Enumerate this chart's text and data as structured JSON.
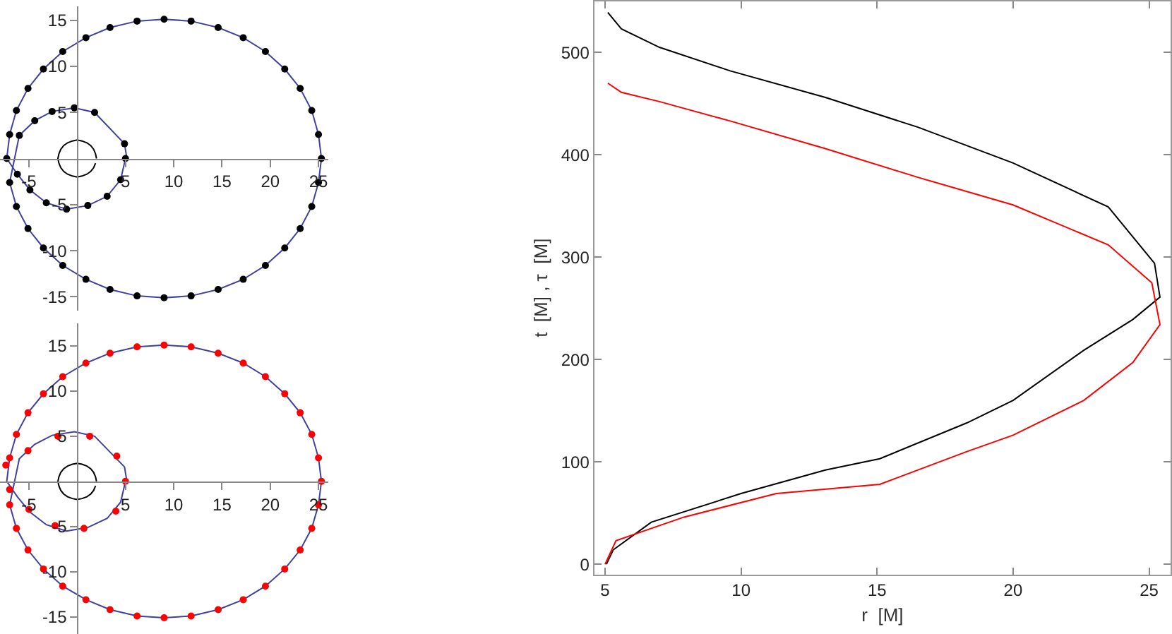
{
  "chart_data": [
    {
      "type": "line",
      "xlim": [
        -8,
        26
      ],
      "ylim": [
        -16.5,
        16.5
      ],
      "xticks": [
        -5,
        5,
        10,
        15,
        20,
        25
      ],
      "yticks": [
        -15,
        -10,
        -5,
        5,
        10,
        15
      ],
      "line_style": "solid",
      "series": [
        {
          "type": "line",
          "color": "#4040a0",
          "x": [
            5,
            4.5,
            3.1,
            1.1,
            -1.1,
            -3.2,
            -4.9,
            -6.2,
            -7.3,
            -7,
            -6.3,
            -5.1,
            -3.5,
            -1.5,
            0.9,
            3.4,
            6.2,
            9,
            11.8,
            14.6,
            17.2,
            19.5,
            21.5,
            23.1,
            24.3,
            25,
            25.3,
            25,
            24.3,
            23.1,
            21.5,
            19.5,
            17.2,
            14.6,
            11.8,
            9,
            6.2,
            3.4,
            0.9,
            -1.5,
            -3.5,
            -5.1,
            -6.3,
            -7,
            -6,
            -4.4,
            -2.6,
            -0.3,
            1.8,
            4.9,
            5.1
          ],
          "values": [
            0,
            -2.3,
            -4.1,
            -5.1,
            -5.5,
            -4.8,
            -3.4,
            -1.7,
            0,
            2.6,
            5.2,
            7.6,
            9.7,
            11.6,
            13.1,
            14.2,
            14.9,
            15.1,
            14.9,
            14.2,
            13.1,
            11.6,
            9.7,
            7.6,
            5.2,
            2.6,
            0,
            -2.6,
            -5.2,
            -7.6,
            -9.7,
            -11.6,
            -13.1,
            -14.2,
            -14.9,
            -15.1,
            -14.9,
            -14.2,
            -13.1,
            -11.6,
            -9.7,
            -7.6,
            -5.2,
            -2.6,
            2.5,
            4.1,
            5.1,
            5.5,
            5,
            1.6,
            0.3
          ]
        },
        {
          "type": "line",
          "color": "#000000",
          "x": [
            2,
            1.9,
            1.7,
            1.4,
            1,
            0.5,
            0,
            -0.5,
            -1,
            -1.4,
            -1.7,
            -1.9,
            -2,
            -1.9,
            -1.7,
            -1.4,
            -1,
            -0.5,
            0,
            0.5,
            1,
            1.4,
            1.7,
            1.9
          ],
          "values": [
            0,
            0.5,
            1,
            1.4,
            1.7,
            1.9,
            2,
            1.9,
            1.7,
            1.4,
            1,
            0.5,
            0,
            -0.5,
            -1,
            -1.4,
            -1.7,
            -1.9,
            -2,
            -1.9,
            -1.7,
            -1.4,
            -1,
            -0.5
          ]
        },
        {
          "type": "scatter",
          "marker": "circle",
          "color": "#000000",
          "x": [
            5,
            4.5,
            3.1,
            1.1,
            -1.1,
            -3.2,
            -4.9,
            -6.2,
            -7.3,
            -7,
            -6.3,
            -5.1,
            -3.5,
            -1.5,
            0.9,
            3.4,
            6.2,
            9,
            11.8,
            14.6,
            17.2,
            19.5,
            21.5,
            23.1,
            24.3,
            25,
            25.3,
            25,
            24.3,
            23.1,
            21.5,
            19.5,
            17.2,
            14.6,
            11.8,
            9,
            6.2,
            3.4,
            0.9,
            -1.5,
            -3.5,
            -5.1,
            -6.3,
            -7,
            -6,
            -4.4,
            -2.6,
            -0.3,
            1.8,
            4.9
          ],
          "values": [
            0,
            -2.3,
            -4.1,
            -5.1,
            -5.5,
            -4.8,
            -3.4,
            -1.7,
            0,
            2.6,
            5.2,
            7.6,
            9.7,
            11.6,
            13.1,
            14.2,
            14.9,
            15.1,
            14.9,
            14.2,
            13.1,
            11.6,
            9.7,
            7.6,
            5.2,
            2.6,
            0,
            -2.6,
            -5.2,
            -7.6,
            -9.7,
            -11.6,
            -13.1,
            -14.2,
            -14.9,
            -15.1,
            -14.9,
            -14.2,
            -13.1,
            -11.6,
            -9.7,
            -7.6,
            -5.2,
            -2.6,
            2.5,
            4.1,
            5.1,
            5.5,
            5,
            1.6
          ]
        }
      ]
    },
    {
      "type": "line",
      "xlim": [
        -8,
        26
      ],
      "ylim": [
        -16.9,
        17.5
      ],
      "xticks": [
        -5,
        5,
        10,
        15,
        20,
        25
      ],
      "yticks": [
        -15,
        -10,
        -5,
        5,
        10,
        15
      ],
      "line_style": "solid",
      "series": [
        {
          "type": "line",
          "color": "#4040a0",
          "x": [
            5,
            4.5,
            3.1,
            1.1,
            -1.1,
            -3.2,
            -4.9,
            -6.2,
            -7.3,
            -7,
            -6.3,
            -5.1,
            -3.5,
            -1.5,
            0.9,
            3.4,
            6.2,
            9,
            11.8,
            14.6,
            17.2,
            19.5,
            21.5,
            23.1,
            24.3,
            25,
            25.3,
            25,
            24.3,
            23.1,
            21.5,
            19.5,
            17.2,
            14.6,
            11.8,
            9,
            6.2,
            3.4,
            0.9,
            -1.5,
            -3.5,
            -5.1,
            -6.3,
            -7,
            -6,
            -4.4,
            -2.6,
            -0.3,
            1.8,
            4.9,
            5.1
          ],
          "values": [
            0,
            -2.3,
            -4.1,
            -5.1,
            -5.5,
            -4.8,
            -3.4,
            -1.7,
            0,
            2.6,
            5.2,
            7.6,
            9.7,
            11.6,
            13.1,
            14.2,
            14.9,
            15.1,
            14.9,
            14.2,
            13.1,
            11.6,
            9.7,
            7.6,
            5.2,
            2.6,
            0,
            -2.6,
            -5.2,
            -7.6,
            -9.7,
            -11.6,
            -13.1,
            -14.2,
            -14.9,
            -15.1,
            -14.9,
            -14.2,
            -13.1,
            -11.6,
            -9.7,
            -7.6,
            -5.2,
            -2.6,
            2.5,
            4.1,
            5.1,
            5.5,
            5,
            1.6,
            0.3
          ]
        },
        {
          "type": "line",
          "color": "#000000",
          "x": [
            2,
            1.9,
            1.7,
            1.4,
            1,
            0.5,
            0,
            -0.5,
            -1,
            -1.4,
            -1.7,
            -1.9,
            -2,
            -1.9,
            -1.7,
            -1.4,
            -1,
            -0.5,
            0,
            0.5,
            1,
            1.4,
            1.7,
            1.9
          ],
          "values": [
            0,
            0.5,
            1,
            1.4,
            1.7,
            1.9,
            2,
            1.9,
            1.7,
            1.4,
            1,
            0.5,
            0,
            -0.5,
            -1,
            -1.4,
            -1.7,
            -1.9,
            -2,
            -1.9,
            -1.7,
            -1.4,
            -1,
            -0.5
          ]
        },
        {
          "type": "scatter",
          "marker": "circle",
          "color": "#ff0000",
          "x": [
            5,
            4,
            0.7,
            -2.3,
            -5,
            -7,
            -7.4,
            -7,
            -6.3,
            -5.1,
            -3.5,
            -1.5,
            0.9,
            3.4,
            6.2,
            9,
            11.8,
            14.6,
            17.2,
            19.5,
            21.5,
            23.1,
            24.3,
            25,
            25.3,
            25,
            24.3,
            23.1,
            21.5,
            19.5,
            17.2,
            14.6,
            11.8,
            9,
            6.2,
            3.4,
            0.9,
            -1.5,
            -3.5,
            -5.1,
            -6.3,
            -7,
            -5.1,
            -2,
            1.3,
            4.1
          ],
          "values": [
            0,
            -3.3,
            -5.2,
            -4.9,
            -3.1,
            -0.9,
            1.8,
            2.6,
            5.2,
            7.6,
            9.7,
            11.6,
            13.1,
            14.2,
            14.9,
            15.1,
            14.9,
            14.2,
            13.1,
            11.6,
            9.7,
            7.6,
            5.2,
            2.6,
            0,
            -2.6,
            -5.2,
            -7.6,
            -9.7,
            -11.6,
            -13.1,
            -14.2,
            -14.9,
            -15.1,
            -14.9,
            -14.2,
            -13.1,
            -11.6,
            -9.7,
            -7.6,
            -5.2,
            -2.6,
            3.4,
            5,
            5,
            2.8
          ]
        }
      ]
    },
    {
      "type": "line",
      "xlim": [
        4.6,
        25.8
      ],
      "ylim": [
        -10,
        550
      ],
      "xticks": [
        5,
        10,
        15,
        20,
        25
      ],
      "yticks": [
        0,
        100,
        200,
        300,
        400,
        500
      ],
      "line_style": "solid",
      "xlabel": "r  [M]",
      "ylabel": "t  [M] , τ  [M]",
      "series": [
        {
          "type": "line",
          "color": "#000000",
          "x": [
            5.05,
            5.3,
            6.7,
            10,
            13.1,
            15.1,
            18.3,
            20,
            22.6,
            24.4,
            25.4,
            25.2,
            23.5,
            20,
            16.5,
            13.1,
            9.6,
            7,
            5.6,
            5.1
          ],
          "values": [
            0,
            14,
            41,
            69,
            92,
            103,
            138,
            160,
            209,
            239,
            261,
            294,
            349,
            392,
            427,
            456,
            482,
            505,
            523,
            539
          ]
        },
        {
          "type": "line",
          "color": "#ff0000",
          "x": [
            5,
            5.4,
            7.9,
            11.3,
            15.1,
            18.3,
            20,
            22.6,
            24.4,
            25.4,
            25.1,
            23.5,
            20,
            16.5,
            13.1,
            9.6,
            7,
            5.6,
            5.1
          ],
          "values": [
            0,
            23,
            46,
            69,
            78,
            110,
            126,
            160,
            197,
            234,
            275,
            312,
            351,
            378,
            406,
            433,
            452,
            461,
            470
          ]
        }
      ]
    }
  ]
}
